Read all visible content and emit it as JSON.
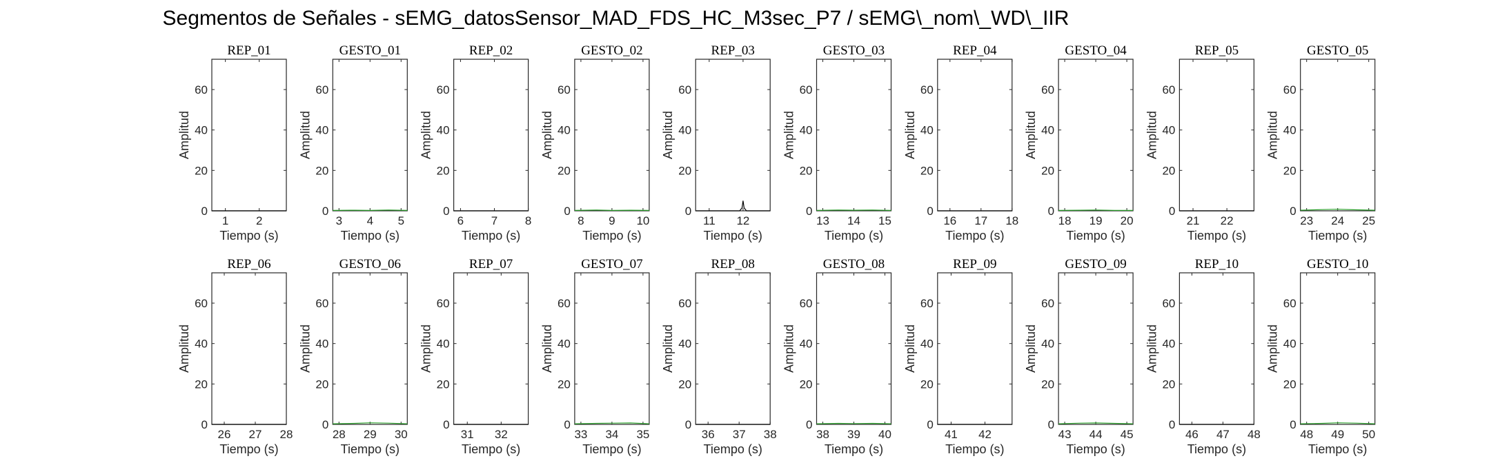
{
  "figure": {
    "title": "Segmentos de Señales - sEMG_datosSensor_MAD_FDS_HC_M3sec_P7 / sEMG\\_nom\\_WD\\_IIR",
    "colors": {
      "rep": "#000000",
      "gesto": "#2ca02c",
      "axis": "#262626",
      "background": "#ffffff"
    }
  },
  "chart_data": [
    {
      "type": "line",
      "title": "REP_01",
      "xlabel": "Tiempo (s)",
      "ylabel": "Amplitud",
      "xlim": [
        0.6,
        2.8
      ],
      "ylim": [
        0,
        75
      ],
      "xticks": [
        1,
        2
      ],
      "yticks": [
        0,
        20,
        40,
        60
      ],
      "grid": false,
      "series": [
        {
          "color": "#000000",
          "x": [
            0.6,
            2.8
          ],
          "y": [
            0,
            0
          ]
        }
      ]
    },
    {
      "type": "line",
      "title": "GESTO_01",
      "xlabel": "Tiempo (s)",
      "ylabel": "Amplitud",
      "xlim": [
        2.8,
        5.2
      ],
      "ylim": [
        0,
        75
      ],
      "xticks": [
        3,
        4,
        5
      ],
      "yticks": [
        0,
        20,
        40,
        60
      ],
      "grid": false,
      "series": [
        {
          "color": "#2ca02c",
          "x": [
            2.8,
            3.5,
            4.0,
            4.6,
            5.2
          ],
          "y": [
            0.2,
            0.3,
            0.2,
            0.4,
            0.2
          ]
        }
      ]
    },
    {
      "type": "line",
      "title": "REP_02",
      "xlabel": "Tiempo (s)",
      "ylabel": "Amplitud",
      "xlim": [
        5.8,
        8.0
      ],
      "ylim": [
        0,
        75
      ],
      "xticks": [
        6,
        7,
        8
      ],
      "yticks": [
        0,
        20,
        40,
        60
      ],
      "grid": false,
      "series": [
        {
          "color": "#000000",
          "x": [
            5.8,
            8.0
          ],
          "y": [
            0,
            0
          ]
        }
      ]
    },
    {
      "type": "line",
      "title": "GESTO_02",
      "xlabel": "Tiempo (s)",
      "ylabel": "Amplitud",
      "xlim": [
        7.8,
        10.2
      ],
      "ylim": [
        0,
        75
      ],
      "xticks": [
        8,
        9,
        10
      ],
      "yticks": [
        0,
        20,
        40,
        60
      ],
      "grid": false,
      "series": [
        {
          "color": "#2ca02c",
          "x": [
            7.8,
            8.5,
            9.0,
            9.6,
            10.2
          ],
          "y": [
            0.2,
            0.4,
            0.2,
            0.3,
            0.2
          ]
        }
      ]
    },
    {
      "type": "line",
      "title": "REP_03",
      "xlabel": "Tiempo (s)",
      "ylabel": "Amplitud",
      "xlim": [
        10.6,
        12.8
      ],
      "ylim": [
        0,
        75
      ],
      "xticks": [
        11,
        12
      ],
      "yticks": [
        0,
        20,
        40,
        60
      ],
      "grid": false,
      "series": [
        {
          "color": "#000000",
          "x": [
            10.6,
            11.9,
            11.97,
            12.0,
            12.03,
            12.1,
            12.8
          ],
          "y": [
            0,
            0,
            1.5,
            5,
            1.5,
            0,
            0
          ]
        }
      ]
    },
    {
      "type": "line",
      "title": "GESTO_03",
      "xlabel": "Tiempo (s)",
      "ylabel": "Amplitud",
      "xlim": [
        12.8,
        15.2
      ],
      "ylim": [
        0,
        75
      ],
      "xticks": [
        13,
        14,
        15
      ],
      "yticks": [
        0,
        20,
        40,
        60
      ],
      "grid": false,
      "series": [
        {
          "color": "#2ca02c",
          "x": [
            12.8,
            13.5,
            14.0,
            14.6,
            15.2
          ],
          "y": [
            0.2,
            0.4,
            0.3,
            0.4,
            0.2
          ]
        }
      ]
    },
    {
      "type": "line",
      "title": "REP_04",
      "xlabel": "Tiempo (s)",
      "ylabel": "Amplitud",
      "xlim": [
        15.6,
        18.0
      ],
      "ylim": [
        0,
        75
      ],
      "xticks": [
        16,
        17,
        18
      ],
      "yticks": [
        0,
        20,
        40,
        60
      ],
      "grid": false,
      "series": [
        {
          "color": "#000000",
          "x": [
            15.6,
            18.0
          ],
          "y": [
            0,
            0
          ]
        }
      ]
    },
    {
      "type": "line",
      "title": "GESTO_04",
      "xlabel": "Tiempo (s)",
      "ylabel": "Amplitud",
      "xlim": [
        17.8,
        20.2
      ],
      "ylim": [
        0,
        75
      ],
      "xticks": [
        18,
        19,
        20
      ],
      "yticks": [
        0,
        20,
        40,
        60
      ],
      "grid": false,
      "series": [
        {
          "color": "#2ca02c",
          "x": [
            17.8,
            18.5,
            19.0,
            19.6,
            20.2
          ],
          "y": [
            0.2,
            0.3,
            0.4,
            0.2,
            0.2
          ]
        }
      ]
    },
    {
      "type": "line",
      "title": "REP_05",
      "xlabel": "Tiempo (s)",
      "ylabel": "Amplitud",
      "xlim": [
        20.6,
        22.8
      ],
      "ylim": [
        0,
        75
      ],
      "xticks": [
        21,
        22
      ],
      "yticks": [
        0,
        20,
        40,
        60
      ],
      "grid": false,
      "series": [
        {
          "color": "#000000",
          "x": [
            20.6,
            22.8
          ],
          "y": [
            0,
            0
          ]
        }
      ]
    },
    {
      "type": "line",
      "title": "GESTO_05",
      "xlabel": "Tiempo (s)",
      "ylabel": "Amplitud",
      "xlim": [
        22.8,
        25.2
      ],
      "ylim": [
        0,
        75
      ],
      "xticks": [
        23,
        24,
        25
      ],
      "yticks": [
        0,
        20,
        40,
        60
      ],
      "grid": false,
      "series": [
        {
          "color": "#2ca02c",
          "x": [
            22.8,
            23.5,
            24.0,
            24.6,
            25.2
          ],
          "y": [
            0.3,
            0.6,
            0.8,
            0.5,
            0.3
          ]
        }
      ]
    },
    {
      "type": "line",
      "title": "REP_06",
      "xlabel": "Tiempo (s)",
      "ylabel": "Amplitud",
      "xlim": [
        25.6,
        28.0
      ],
      "ylim": [
        0,
        75
      ],
      "xticks": [
        26,
        27,
        28
      ],
      "yticks": [
        0,
        20,
        40,
        60
      ],
      "grid": false,
      "series": [
        {
          "color": "#000000",
          "x": [
            25.6,
            28.0
          ],
          "y": [
            0,
            0
          ]
        }
      ]
    },
    {
      "type": "line",
      "title": "GESTO_06",
      "xlabel": "Tiempo (s)",
      "ylabel": "Amplitud",
      "xlim": [
        27.8,
        30.2
      ],
      "ylim": [
        0,
        75
      ],
      "xticks": [
        28,
        29,
        30
      ],
      "yticks": [
        0,
        20,
        40,
        60
      ],
      "grid": false,
      "series": [
        {
          "color": "#2ca02c",
          "x": [
            27.8,
            28.5,
            29.0,
            29.6,
            30.2
          ],
          "y": [
            0.3,
            0.5,
            0.8,
            0.6,
            0.3
          ]
        }
      ]
    },
    {
      "type": "line",
      "title": "REP_07",
      "xlabel": "Tiempo (s)",
      "ylabel": "Amplitud",
      "xlim": [
        30.6,
        32.8
      ],
      "ylim": [
        0,
        75
      ],
      "xticks": [
        31,
        32
      ],
      "yticks": [
        0,
        20,
        40,
        60
      ],
      "grid": false,
      "series": [
        {
          "color": "#000000",
          "x": [
            30.6,
            32.8
          ],
          "y": [
            0,
            0
          ]
        }
      ]
    },
    {
      "type": "line",
      "title": "GESTO_07",
      "xlabel": "Tiempo (s)",
      "ylabel": "Amplitud",
      "xlim": [
        32.8,
        35.2
      ],
      "ylim": [
        0,
        75
      ],
      "xticks": [
        33,
        34,
        35
      ],
      "yticks": [
        0,
        20,
        40,
        60
      ],
      "grid": false,
      "series": [
        {
          "color": "#2ca02c",
          "x": [
            32.8,
            33.5,
            34.0,
            34.6,
            35.2
          ],
          "y": [
            0.3,
            0.5,
            0.6,
            0.7,
            0.3
          ]
        }
      ]
    },
    {
      "type": "line",
      "title": "REP_08",
      "xlabel": "Tiempo (s)",
      "ylabel": "Amplitud",
      "xlim": [
        35.6,
        38.0
      ],
      "ylim": [
        0,
        75
      ],
      "xticks": [
        36,
        37,
        38
      ],
      "yticks": [
        0,
        20,
        40,
        60
      ],
      "grid": false,
      "series": [
        {
          "color": "#000000",
          "x": [
            35.6,
            38.0
          ],
          "y": [
            0,
            0
          ]
        }
      ]
    },
    {
      "type": "line",
      "title": "GESTO_08",
      "xlabel": "Tiempo (s)",
      "ylabel": "Amplitud",
      "xlim": [
        37.8,
        40.2
      ],
      "ylim": [
        0,
        75
      ],
      "xticks": [
        38,
        39,
        40
      ],
      "yticks": [
        0,
        20,
        40,
        60
      ],
      "grid": false,
      "series": [
        {
          "color": "#2ca02c",
          "x": [
            37.8,
            38.5,
            39.0,
            39.6,
            40.2
          ],
          "y": [
            0.3,
            0.5,
            0.4,
            0.5,
            0.3
          ]
        }
      ]
    },
    {
      "type": "line",
      "title": "REP_09",
      "xlabel": "Tiempo (s)",
      "ylabel": "Amplitud",
      "xlim": [
        40.6,
        42.8
      ],
      "ylim": [
        0,
        75
      ],
      "xticks": [
        41,
        42
      ],
      "yticks": [
        0,
        20,
        40,
        60
      ],
      "grid": false,
      "series": [
        {
          "color": "#000000",
          "x": [
            40.6,
            42.8
          ],
          "y": [
            0,
            0
          ]
        }
      ]
    },
    {
      "type": "line",
      "title": "GESTO_09",
      "xlabel": "Tiempo (s)",
      "ylabel": "Amplitud",
      "xlim": [
        42.8,
        45.2
      ],
      "ylim": [
        0,
        75
      ],
      "xticks": [
        43,
        44,
        45
      ],
      "yticks": [
        0,
        20,
        40,
        60
      ],
      "grid": false,
      "series": [
        {
          "color": "#2ca02c",
          "x": [
            42.8,
            43.5,
            44.0,
            44.6,
            45.2
          ],
          "y": [
            0.3,
            0.6,
            0.7,
            0.5,
            0.3
          ]
        }
      ]
    },
    {
      "type": "line",
      "title": "REP_10",
      "xlabel": "Tiempo (s)",
      "ylabel": "Amplitud",
      "xlim": [
        45.6,
        48.0
      ],
      "ylim": [
        0,
        75
      ],
      "xticks": [
        46,
        47,
        48
      ],
      "yticks": [
        0,
        20,
        40,
        60
      ],
      "grid": false,
      "series": [
        {
          "color": "#000000",
          "x": [
            45.6,
            48.0
          ],
          "y": [
            0,
            0
          ]
        }
      ]
    },
    {
      "type": "line",
      "title": "GESTO_10",
      "xlabel": "Tiempo (s)",
      "ylabel": "Amplitud",
      "xlim": [
        47.8,
        50.2
      ],
      "ylim": [
        0,
        75
      ],
      "xticks": [
        48,
        49,
        50
      ],
      "yticks": [
        0,
        20,
        40,
        60
      ],
      "grid": false,
      "series": [
        {
          "color": "#2ca02c",
          "x": [
            47.8,
            48.5,
            49.0,
            49.6,
            50.2
          ],
          "y": [
            0.3,
            0.5,
            0.8,
            0.6,
            0.3
          ]
        }
      ]
    }
  ]
}
